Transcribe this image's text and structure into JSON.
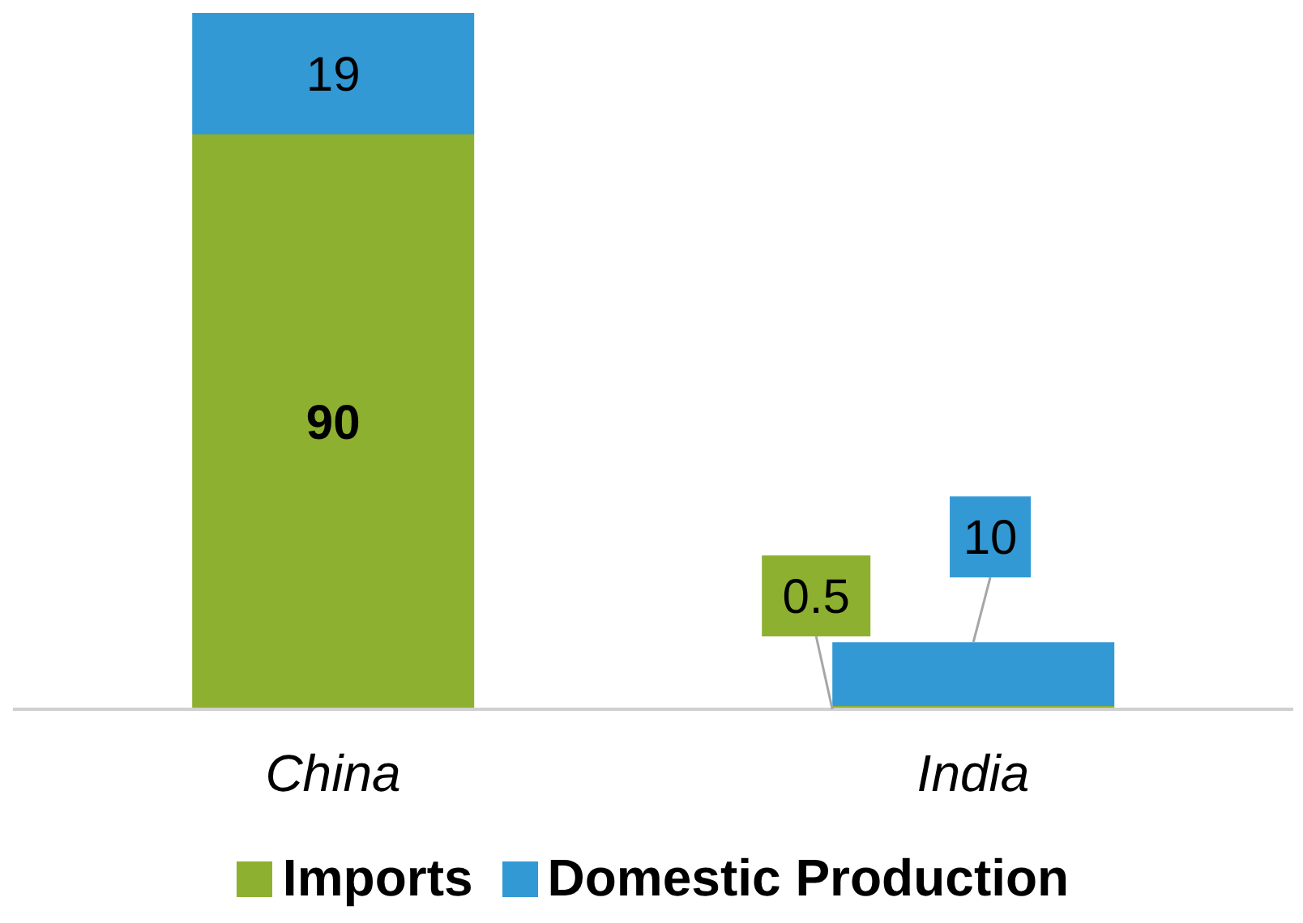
{
  "chart_data": {
    "type": "bar",
    "stacked": true,
    "categories": [
      "China",
      "India"
    ],
    "series": [
      {
        "name": "Imports",
        "color": "#8db030",
        "values": [
          90,
          0.5
        ]
      },
      {
        "name": "Domestic Production",
        "color": "#3399d4",
        "values": [
          19,
          10
        ]
      }
    ],
    "data_labels": true,
    "legend": "bottom",
    "grid": false
  }
}
